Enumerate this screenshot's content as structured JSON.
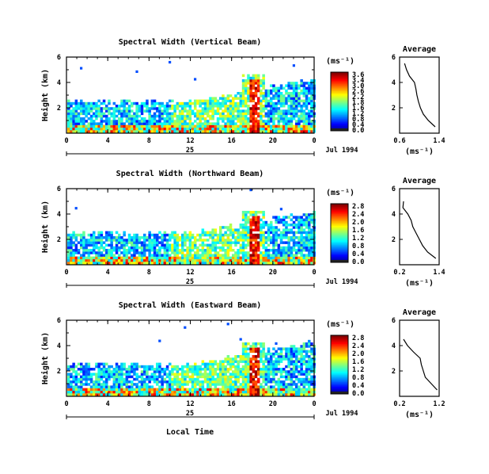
{
  "figure": {
    "panels": [
      {
        "title": "Spectral Width (Vertical Beam)",
        "cb_ticks": [
          "3.6",
          "3.4",
          "3.0",
          "2.6",
          "2.2",
          "1.8",
          "1.6",
          "1.2",
          "0.8",
          "0.4",
          "0.0"
        ],
        "avg_xticks": [
          "0.6",
          "1.4"
        ]
      },
      {
        "title": "Spectral Width (Northward Beam)",
        "cb_ticks": [
          "2.8",
          "2.4",
          "2.0",
          "1.6",
          "1.2",
          "0.8",
          "0.4",
          "0.0"
        ],
        "avg_xticks": [
          "0.2",
          "1.4"
        ]
      },
      {
        "title": "Spectral Width (Eastward Beam)",
        "cb_ticks": [
          "2.8",
          "2.4",
          "2.0",
          "1.6",
          "1.2",
          "0.8",
          "0.4",
          "0.0"
        ],
        "avg_xticks": [
          "0.2",
          "1.2"
        ]
      }
    ],
    "ylabel": "Height (km)",
    "yticks": [
      "6",
      "4",
      "2"
    ],
    "xticks": [
      "0",
      "4",
      "8",
      "12",
      "16",
      "20",
      "0"
    ],
    "day_label": "25",
    "date_label": "Jul 1994",
    "cb_unit": "(ms⁻¹)",
    "avg_title": "Average",
    "avg_yticks": [
      "6",
      "4",
      "2"
    ],
    "avg_xunit": "(ms⁻¹)",
    "xlabel": "Local Time"
  },
  "chart_data": [
    {
      "type": "heatmap",
      "title": "Spectral Width (Vertical Beam)",
      "xlabel": "",
      "ylabel": "Height (km)",
      "xlim": [
        0,
        24
      ],
      "ylim": [
        0,
        6
      ],
      "colorbar": {
        "label": "(ms⁻¹)",
        "range": [
          0.0,
          3.6
        ]
      },
      "profile": {
        "title": "Average",
        "xlim": [
          0.6,
          1.4
        ],
        "ylim": [
          0,
          6
        ],
        "height_km": [
          0.5,
          1.0,
          1.5,
          2.0,
          2.5,
          3.0,
          3.5,
          4.0,
          4.5,
          5.0,
          5.5
        ],
        "width": [
          1.32,
          1.18,
          1.08,
          1.02,
          0.98,
          0.95,
          0.93,
          0.9,
          0.8,
          0.74,
          0.7
        ]
      }
    },
    {
      "type": "heatmap",
      "title": "Spectral Width (Northward Beam)",
      "xlabel": "",
      "ylabel": "Height (km)",
      "xlim": [
        0,
        24
      ],
      "ylim": [
        0,
        6
      ],
      "colorbar": {
        "label": "(ms⁻¹)",
        "range": [
          0.0,
          2.8
        ]
      },
      "profile": {
        "title": "Average",
        "xlim": [
          0.2,
          1.4
        ],
        "ylim": [
          0,
          6
        ],
        "height_km": [
          0.5,
          1.0,
          1.5,
          2.0,
          2.5,
          3.0,
          3.5,
          4.0,
          4.5,
          5.0
        ],
        "width": [
          1.3,
          1.05,
          0.9,
          0.8,
          0.7,
          0.6,
          0.55,
          0.45,
          0.3,
          0.32
        ]
      }
    },
    {
      "type": "heatmap",
      "title": "Spectral Width (Eastward Beam)",
      "xlabel": "Local Time",
      "ylabel": "Height (km)",
      "xlim": [
        0,
        24
      ],
      "ylim": [
        0,
        6
      ],
      "colorbar": {
        "label": "(ms⁻¹)",
        "range": [
          0.0,
          2.8
        ]
      },
      "profile": {
        "title": "Average",
        "xlim": [
          0.2,
          1.2
        ],
        "ylim": [
          0,
          6
        ],
        "height_km": [
          0.5,
          1.0,
          1.5,
          2.0,
          2.5,
          3.0,
          3.5,
          4.0,
          4.5
        ],
        "width": [
          1.15,
          1.0,
          0.85,
          0.8,
          0.75,
          0.72,
          0.55,
          0.4,
          0.3
        ]
      }
    }
  ]
}
